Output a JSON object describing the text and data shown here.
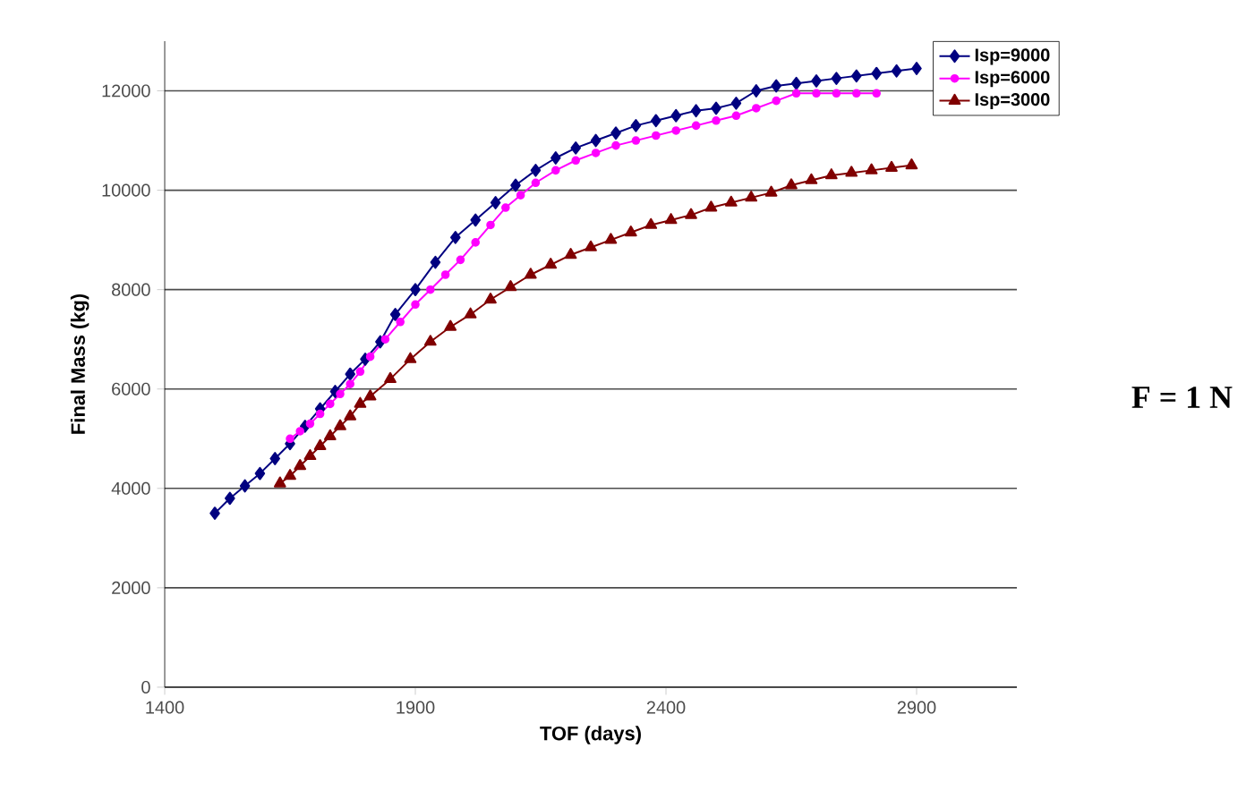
{
  "chart_data": {
    "type": "line",
    "xlabel": "TOF (days)",
    "ylabel": "Final Mass (kg)",
    "xlim": [
      1400,
      3100
    ],
    "xticks": [
      1400,
      1900,
      2400,
      2900
    ],
    "ylim": [
      0,
      13000
    ],
    "yticks": [
      0,
      2000,
      4000,
      6000,
      8000,
      10000,
      12000
    ],
    "grid": "y",
    "legend": "top right",
    "line_style": "solid",
    "annotations": [
      "**F = 1 N**"
    ],
    "series": [
      {
        "name": "Isp=9000",
        "color": "#000080",
        "marker": "diamond",
        "x": [
          1500,
          1530,
          1560,
          1590,
          1620,
          1650,
          1680,
          1710,
          1740,
          1770,
          1800,
          1830,
          1860,
          1900,
          1940,
          1980,
          2020,
          2060,
          2100,
          2140,
          2180,
          2220,
          2260,
          2300,
          2340,
          2380,
          2420,
          2460,
          2500,
          2540,
          2580,
          2620,
          2660,
          2700,
          2740,
          2780,
          2820,
          2860,
          2900
        ],
        "values": [
          3500,
          3800,
          4050,
          4300,
          4600,
          4900,
          5250,
          5600,
          5950,
          6300,
          6600,
          6950,
          7500,
          8000,
          8550,
          9050,
          9400,
          9750,
          10100,
          10400,
          10650,
          10850,
          11000,
          11150,
          11300,
          11400,
          11500,
          11600,
          11650,
          11750,
          12000,
          12100,
          12150,
          12200,
          12250,
          12300,
          12350,
          12400,
          12450
        ]
      },
      {
        "name": "Isp=6000",
        "color": "#ff00ff",
        "marker": "circle",
        "x": [
          1650,
          1670,
          1690,
          1710,
          1730,
          1750,
          1770,
          1790,
          1810,
          1840,
          1870,
          1900,
          1930,
          1960,
          1990,
          2020,
          2050,
          2080,
          2110,
          2140,
          2180,
          2220,
          2260,
          2300,
          2340,
          2380,
          2420,
          2460,
          2500,
          2540,
          2580,
          2620,
          2660,
          2700,
          2740,
          2780,
          2820
        ],
        "values": [
          5000,
          5150,
          5300,
          5500,
          5700,
          5900,
          6100,
          6350,
          6650,
          7000,
          7350,
          7700,
          8000,
          8300,
          8600,
          8950,
          9300,
          9650,
          9900,
          10150,
          10400,
          10600,
          10750,
          10900,
          11000,
          11100,
          11200,
          11300,
          11400,
          11500,
          11650,
          11800,
          11950,
          11950,
          11950,
          11950,
          11950
        ]
      },
      {
        "name": "Isp=3000",
        "color": "#800000",
        "marker": "triangle",
        "x": [
          1630,
          1650,
          1670,
          1690,
          1710,
          1730,
          1750,
          1770,
          1790,
          1810,
          1850,
          1890,
          1930,
          1970,
          2010,
          2050,
          2090,
          2130,
          2170,
          2210,
          2250,
          2290,
          2330,
          2370,
          2410,
          2450,
          2490,
          2530,
          2570,
          2610,
          2650,
          2690,
          2730,
          2770,
          2810,
          2850,
          2890
        ],
        "values": [
          4100,
          4250,
          4450,
          4650,
          4850,
          5050,
          5250,
          5450,
          5700,
          5850,
          6200,
          6600,
          6950,
          7250,
          7500,
          7800,
          8050,
          8300,
          8500,
          8700,
          8850,
          9000,
          9150,
          9300,
          9400,
          9500,
          9650,
          9750,
          9850,
          9950,
          10100,
          10200,
          10300,
          10350,
          10400,
          10450,
          10500
        ]
      }
    ]
  }
}
